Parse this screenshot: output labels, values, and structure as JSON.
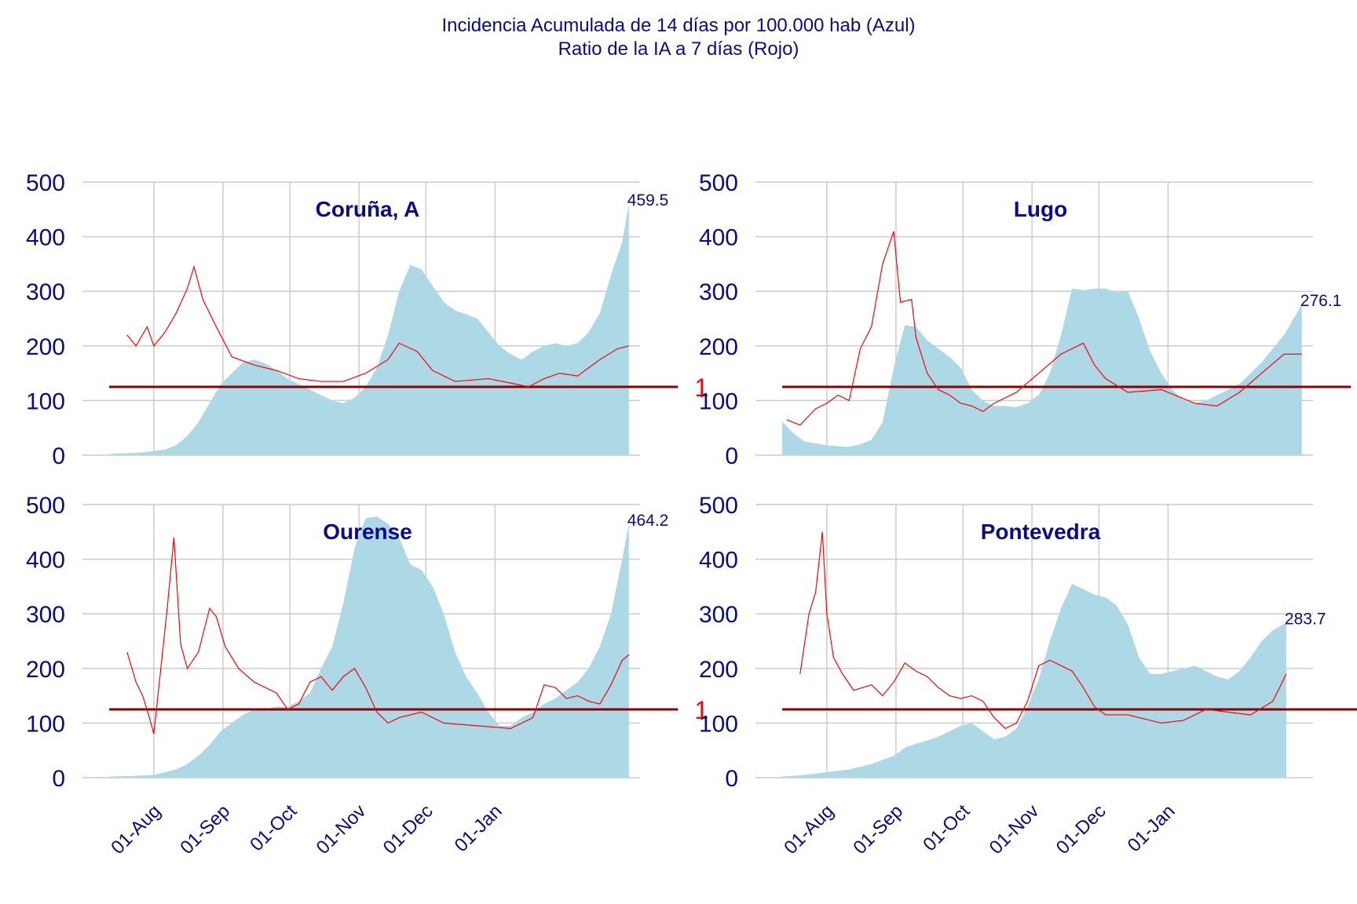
{
  "title_line1": "Incidencia Acumulada de 14 días por 100.000 hab (Azul)",
  "title_line2": "Ratio de la IA a 7 días (Rojo)",
  "colors": {
    "area": "#add8e6",
    "ratio_line": "#ff0000",
    "reference_line": "#8b0000",
    "text": "#0a0a8c",
    "grid": "#cccccc"
  },
  "chart_data": [
    {
      "type": "area",
      "panel": "Coruña, A",
      "x_ticks": [
        "01-Aug",
        "01-Sep",
        "01-Oct",
        "01-Nov",
        "01-Dec",
        "01-Jan"
      ],
      "y_ticks": [
        "0",
        "100",
        "200",
        "300",
        "400",
        "500"
      ],
      "ylim": [
        0,
        500
      ],
      "last_value_label": "459.5",
      "reference_label": "1",
      "area_values": [
        [
          -20,
          2
        ],
        [
          -5,
          5
        ],
        [
          5,
          10
        ],
        [
          10,
          18
        ],
        [
          15,
          35
        ],
        [
          20,
          60
        ],
        [
          25,
          95
        ],
        [
          30,
          130
        ],
        [
          35,
          150
        ],
        [
          40,
          170
        ],
        [
          45,
          175
        ],
        [
          50,
          168
        ],
        [
          55,
          155
        ],
        [
          60,
          140
        ],
        [
          65,
          130
        ],
        [
          70,
          120
        ],
        [
          75,
          110
        ],
        [
          80,
          100
        ],
        [
          85,
          95
        ],
        [
          90,
          105
        ],
        [
          95,
          125
        ],
        [
          100,
          160
        ],
        [
          105,
          220
        ],
        [
          110,
          300
        ],
        [
          115,
          348
        ],
        [
          120,
          340
        ],
        [
          125,
          310
        ],
        [
          130,
          280
        ],
        [
          135,
          265
        ],
        [
          140,
          258
        ],
        [
          145,
          250
        ],
        [
          150,
          225
        ],
        [
          155,
          200
        ],
        [
          160,
          185
        ],
        [
          165,
          175
        ],
        [
          170,
          190
        ],
        [
          175,
          200
        ],
        [
          180,
          205
        ],
        [
          185,
          200
        ],
        [
          190,
          205
        ],
        [
          195,
          225
        ],
        [
          200,
          260
        ],
        [
          205,
          330
        ],
        [
          210,
          390
        ],
        [
          213,
          459.5
        ]
      ],
      "ratio_line_values": [
        [
          -12,
          220
        ],
        [
          -8,
          200
        ],
        [
          -3,
          235
        ],
        [
          0,
          200
        ],
        [
          5,
          225
        ],
        [
          10,
          260
        ],
        [
          15,
          305
        ],
        [
          18,
          345
        ],
        [
          22,
          285
        ],
        [
          28,
          235
        ],
        [
          35,
          180
        ],
        [
          45,
          165
        ],
        [
          55,
          155
        ],
        [
          65,
          140
        ],
        [
          75,
          135
        ],
        [
          85,
          135
        ],
        [
          95,
          150
        ],
        [
          105,
          175
        ],
        [
          110,
          205
        ],
        [
          118,
          190
        ],
        [
          125,
          155
        ],
        [
          135,
          135
        ],
        [
          150,
          140
        ],
        [
          160,
          132
        ],
        [
          168,
          125
        ],
        [
          175,
          140
        ],
        [
          182,
          150
        ],
        [
          190,
          145
        ],
        [
          200,
          175
        ],
        [
          208,
          195
        ],
        [
          213,
          200
        ]
      ],
      "reference_values": [
        [
          -20,
          125
        ],
        [
          235,
          125
        ]
      ]
    },
    {
      "type": "area",
      "panel": "Lugo",
      "x_ticks": [
        "01-Aug",
        "01-Sep",
        "01-Oct",
        "01-Nov",
        "01-Dec",
        "01-Jan"
      ],
      "y_ticks": [
        "0",
        "100",
        "200",
        "300",
        "400",
        "500"
      ],
      "ylim": [
        0,
        500
      ],
      "last_value_label": "276.1",
      "reference_label": "1",
      "area_values": [
        [
          -20,
          62
        ],
        [
          -15,
          40
        ],
        [
          -10,
          25
        ],
        [
          0,
          18
        ],
        [
          10,
          15
        ],
        [
          15,
          20
        ],
        [
          20,
          28
        ],
        [
          25,
          60
        ],
        [
          30,
          160
        ],
        [
          35,
          238
        ],
        [
          40,
          235
        ],
        [
          45,
          210
        ],
        [
          50,
          195
        ],
        [
          55,
          180
        ],
        [
          60,
          160
        ],
        [
          65,
          120
        ],
        [
          70,
          100
        ],
        [
          75,
          90
        ],
        [
          80,
          90
        ],
        [
          85,
          88
        ],
        [
          90,
          95
        ],
        [
          95,
          110
        ],
        [
          100,
          150
        ],
        [
          105,
          220
        ],
        [
          110,
          305
        ],
        [
          115,
          302
        ],
        [
          120,
          305
        ],
        [
          125,
          305
        ],
        [
          130,
          298
        ],
        [
          135,
          300
        ],
        [
          140,
          250
        ],
        [
          145,
          190
        ],
        [
          150,
          150
        ],
        [
          155,
          120
        ],
        [
          160,
          100
        ],
        [
          165,
          95
        ],
        [
          170,
          100
        ],
        [
          175,
          110
        ],
        [
          185,
          130
        ],
        [
          195,
          170
        ],
        [
          205,
          220
        ],
        [
          213,
          276.1
        ]
      ],
      "ratio_line_values": [
        [
          -18,
          65
        ],
        [
          -12,
          55
        ],
        [
          -5,
          85
        ],
        [
          0,
          95
        ],
        [
          5,
          110
        ],
        [
          10,
          100
        ],
        [
          15,
          195
        ],
        [
          20,
          235
        ],
        [
          25,
          350
        ],
        [
          30,
          410
        ],
        [
          33,
          280
        ],
        [
          38,
          285
        ],
        [
          40,
          215
        ],
        [
          45,
          150
        ],
        [
          50,
          120
        ],
        [
          55,
          110
        ],
        [
          60,
          95
        ],
        [
          65,
          90
        ],
        [
          70,
          80
        ],
        [
          75,
          95
        ],
        [
          85,
          115
        ],
        [
          95,
          150
        ],
        [
          105,
          185
        ],
        [
          115,
          205
        ],
        [
          120,
          165
        ],
        [
          125,
          140
        ],
        [
          135,
          115
        ],
        [
          150,
          120
        ],
        [
          165,
          95
        ],
        [
          175,
          90
        ],
        [
          185,
          115
        ],
        [
          195,
          150
        ],
        [
          205,
          185
        ],
        [
          213,
          185
        ]
      ],
      "reference_values": [
        [
          -20,
          125
        ],
        [
          235,
          125
        ]
      ]
    },
    {
      "type": "area",
      "panel": "Ourense",
      "x_ticks": [
        "01-Aug",
        "01-Sep",
        "01-Oct",
        "01-Nov",
        "01-Dec",
        "01-Jan"
      ],
      "y_ticks": [
        "0",
        "100",
        "200",
        "300",
        "400",
        "500"
      ],
      "ylim": [
        0,
        500
      ],
      "last_value_label": "464.2",
      "reference_label": "1",
      "area_values": [
        [
          -20,
          2
        ],
        [
          -10,
          3
        ],
        [
          0,
          5
        ],
        [
          10,
          15
        ],
        [
          15,
          25
        ],
        [
          20,
          40
        ],
        [
          25,
          60
        ],
        [
          30,
          85
        ],
        [
          35,
          100
        ],
        [
          40,
          115
        ],
        [
          45,
          125
        ],
        [
          50,
          125
        ],
        [
          55,
          130
        ],
        [
          60,
          130
        ],
        [
          65,
          140
        ],
        [
          70,
          155
        ],
        [
          75,
          200
        ],
        [
          80,
          240
        ],
        [
          85,
          320
        ],
        [
          90,
          420
        ],
        [
          95,
          475
        ],
        [
          100,
          478
        ],
        [
          105,
          465
        ],
        [
          110,
          440
        ],
        [
          115,
          390
        ],
        [
          120,
          380
        ],
        [
          125,
          350
        ],
        [
          130,
          300
        ],
        [
          135,
          230
        ],
        [
          140,
          185
        ],
        [
          145,
          155
        ],
        [
          150,
          120
        ],
        [
          155,
          95
        ],
        [
          160,
          95
        ],
        [
          165,
          110
        ],
        [
          170,
          120
        ],
        [
          175,
          135
        ],
        [
          180,
          145
        ],
        [
          185,
          160
        ],
        [
          190,
          175
        ],
        [
          195,
          200
        ],
        [
          200,
          240
        ],
        [
          205,
          300
        ],
        [
          210,
          400
        ],
        [
          213,
          464.2
        ]
      ],
      "ratio_line_values": [
        [
          -12,
          230
        ],
        [
          -8,
          175
        ],
        [
          -5,
          150
        ],
        [
          -2,
          110
        ],
        [
          0,
          80
        ],
        [
          3,
          195
        ],
        [
          6,
          310
        ],
        [
          9,
          440
        ],
        [
          12,
          245
        ],
        [
          15,
          200
        ],
        [
          20,
          230
        ],
        [
          25,
          310
        ],
        [
          28,
          295
        ],
        [
          32,
          240
        ],
        [
          38,
          200
        ],
        [
          45,
          175
        ],
        [
          55,
          155
        ],
        [
          60,
          125
        ],
        [
          65,
          135
        ],
        [
          70,
          175
        ],
        [
          75,
          185
        ],
        [
          80,
          160
        ],
        [
          85,
          185
        ],
        [
          90,
          200
        ],
        [
          95,
          165
        ],
        [
          100,
          120
        ],
        [
          105,
          100
        ],
        [
          110,
          110
        ],
        [
          120,
          120
        ],
        [
          130,
          100
        ],
        [
          145,
          95
        ],
        [
          160,
          90
        ],
        [
          170,
          110
        ],
        [
          175,
          170
        ],
        [
          180,
          165
        ],
        [
          185,
          145
        ],
        [
          190,
          150
        ],
        [
          195,
          140
        ],
        [
          200,
          135
        ],
        [
          205,
          170
        ],
        [
          210,
          215
        ],
        [
          213,
          225
        ]
      ],
      "reference_values": [
        [
          -20,
          125
        ],
        [
          235,
          125
        ]
      ]
    },
    {
      "type": "area",
      "panel": "Pontevedra",
      "x_ticks": [
        "01-Aug",
        "01-Sep",
        "01-Oct",
        "01-Nov",
        "01-Dec",
        "01-Jan"
      ],
      "y_ticks": [
        "0",
        "100",
        "200",
        "300",
        "400",
        "500"
      ],
      "ylim": [
        0,
        500
      ],
      "last_value_label": "283.7",
      "reference_label": "1",
      "area_values": [
        [
          -20,
          2
        ],
        [
          -10,
          5
        ],
        [
          0,
          10
        ],
        [
          10,
          15
        ],
        [
          20,
          25
        ],
        [
          30,
          40
        ],
        [
          35,
          55
        ],
        [
          40,
          62
        ],
        [
          45,
          68
        ],
        [
          50,
          75
        ],
        [
          55,
          85
        ],
        [
          60,
          95
        ],
        [
          65,
          100
        ],
        [
          70,
          85
        ],
        [
          75,
          70
        ],
        [
          80,
          75
        ],
        [
          85,
          90
        ],
        [
          90,
          130
        ],
        [
          95,
          180
        ],
        [
          100,
          250
        ],
        [
          105,
          310
        ],
        [
          110,
          355
        ],
        [
          115,
          345
        ],
        [
          120,
          335
        ],
        [
          125,
          330
        ],
        [
          130,
          315
        ],
        [
          135,
          280
        ],
        [
          140,
          220
        ],
        [
          145,
          190
        ],
        [
          150,
          190
        ],
        [
          155,
          195
        ],
        [
          160,
          200
        ],
        [
          165,
          205
        ],
        [
          170,
          195
        ],
        [
          175,
          185
        ],
        [
          180,
          180
        ],
        [
          185,
          195
        ],
        [
          190,
          220
        ],
        [
          195,
          250
        ],
        [
          200,
          270
        ],
        [
          206,
          283.7
        ]
      ],
      "ratio_line_values": [
        [
          -12,
          190
        ],
        [
          -8,
          300
        ],
        [
          -5,
          340
        ],
        [
          -2,
          450
        ],
        [
          0,
          300
        ],
        [
          3,
          220
        ],
        [
          7,
          190
        ],
        [
          12,
          160
        ],
        [
          20,
          170
        ],
        [
          25,
          150
        ],
        [
          30,
          175
        ],
        [
          35,
          210
        ],
        [
          40,
          195
        ],
        [
          45,
          185
        ],
        [
          50,
          165
        ],
        [
          55,
          150
        ],
        [
          60,
          145
        ],
        [
          65,
          150
        ],
        [
          70,
          140
        ],
        [
          75,
          110
        ],
        [
          80,
          90
        ],
        [
          85,
          100
        ],
        [
          90,
          140
        ],
        [
          95,
          205
        ],
        [
          100,
          215
        ],
        [
          105,
          205
        ],
        [
          110,
          195
        ],
        [
          115,
          165
        ],
        [
          120,
          130
        ],
        [
          125,
          115
        ],
        [
          135,
          115
        ],
        [
          150,
          100
        ],
        [
          160,
          105
        ],
        [
          165,
          115
        ],
        [
          170,
          125
        ],
        [
          180,
          120
        ],
        [
          190,
          115
        ],
        [
          200,
          140
        ],
        [
          206,
          190
        ]
      ],
      "reference_values": [
        [
          -20,
          125
        ],
        [
          240,
          125
        ]
      ]
    }
  ]
}
